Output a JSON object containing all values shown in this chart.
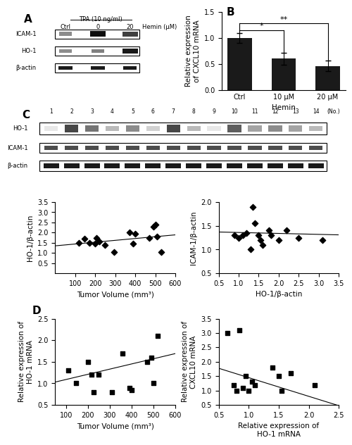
{
  "panel_B": {
    "categories": [
      "Ctrl",
      "10 μM",
      "20 μM"
    ],
    "values": [
      1.0,
      0.6,
      0.46
    ],
    "errors": [
      0.1,
      0.12,
      0.1
    ],
    "bar_color": "#1a1a1a",
    "ylabel": "Relative expression\nof CXCL10 mRNA",
    "xlabel": "Hemin",
    "ylim": [
      0,
      1.5
    ],
    "yticks": [
      0.0,
      0.5,
      1.0,
      1.5
    ]
  },
  "panel_C_scatter1": {
    "x": [
      120,
      145,
      170,
      200,
      205,
      220,
      250,
      295,
      370,
      390,
      400,
      470,
      490,
      500,
      510,
      530
    ],
    "y": [
      1.5,
      1.7,
      1.5,
      1.45,
      1.75,
      1.55,
      1.4,
      1.05,
      2.0,
      1.45,
      1.95,
      1.75,
      2.3,
      2.4,
      1.8,
      1.05
    ],
    "xlabel": "Tumor Volume (mm³)",
    "ylabel": "HO-1/β-actin",
    "xlim": [
      0,
      600
    ],
    "ylim": [
      0.0,
      3.5
    ],
    "yticks": [
      0.5,
      1.0,
      1.5,
      2.0,
      2.5,
      3.0,
      3.5
    ],
    "xticks": [
      100,
      200,
      300,
      400,
      500,
      600
    ],
    "trend": [
      0.0009,
      1.35
    ]
  },
  "panel_C_scatter2": {
    "x": [
      0.9,
      1.0,
      1.1,
      1.2,
      1.3,
      1.35,
      1.4,
      1.5,
      1.55,
      1.6,
      1.75,
      1.8,
      2.0,
      2.2,
      2.5,
      3.1
    ],
    "y": [
      1.3,
      1.25,
      1.3,
      1.35,
      1.0,
      1.9,
      1.55,
      1.3,
      1.2,
      1.1,
      1.4,
      1.3,
      1.2,
      1.4,
      1.25,
      1.2
    ],
    "xlabel": "HO-1/β-actin",
    "ylabel": "ICAM-1/β-actin",
    "xlim": [
      0.5,
      3.5
    ],
    "ylim": [
      0.5,
      2.0
    ],
    "yticks": [
      0.5,
      1.0,
      1.5,
      2.0
    ],
    "xticks": [
      0.5,
      1.0,
      1.5,
      2.0,
      2.5,
      3.0,
      3.5
    ],
    "trend": [
      -0.02,
      1.38
    ]
  },
  "panel_D_scatter1": {
    "x": [
      110,
      145,
      200,
      215,
      225,
      250,
      310,
      360,
      390,
      400,
      470,
      490,
      500,
      520
    ],
    "y": [
      1.3,
      1.0,
      1.5,
      1.2,
      0.8,
      1.2,
      0.8,
      1.7,
      0.9,
      0.85,
      1.5,
      1.6,
      1.0,
      2.1
    ],
    "xlabel": "Tumor Volume (mm³)",
    "ylabel": "Relative expression of\nHO-1 mRNA",
    "xlim": [
      50,
      600
    ],
    "ylim": [
      0.5,
      2.5
    ],
    "yticks": [
      0.5,
      1.0,
      1.5,
      2.0,
      2.5
    ],
    "xticks": [
      100,
      200,
      300,
      400,
      500,
      600
    ],
    "trend": [
      0.0012,
      0.97
    ]
  },
  "panel_D_scatter2": {
    "x": [
      0.65,
      0.75,
      0.8,
      0.85,
      0.9,
      0.95,
      1.0,
      1.05,
      1.1,
      1.4,
      1.5,
      1.55,
      1.7,
      2.1
    ],
    "y": [
      3.0,
      1.2,
      1.0,
      3.1,
      1.1,
      1.5,
      1.0,
      1.3,
      1.2,
      1.8,
      1.5,
      1.0,
      1.6,
      1.2
    ],
    "xlabel": "Relative expression of\nHO-1 mRNA",
    "ylabel": "Relative expression of\nCXCL10 mRNA",
    "xlim": [
      0.5,
      2.5
    ],
    "ylim": [
      0.5,
      3.5
    ],
    "yticks": [
      0.5,
      1.0,
      1.5,
      2.0,
      2.5,
      3.0,
      3.5
    ],
    "xticks": [
      0.5,
      1.0,
      1.5,
      2.0,
      2.5
    ],
    "trend": [
      -0.65,
      2.1
    ]
  },
  "ho1_band_heights": [
    0.1,
    0.8,
    0.6,
    0.3,
    0.5,
    0.2,
    0.8,
    0.3,
    0.1,
    0.7,
    0.4,
    0.5,
    0.4,
    0.3
  ],
  "panel_labels_fontsize": 11,
  "tick_fontsize": 7,
  "label_fontsize": 7.5
}
